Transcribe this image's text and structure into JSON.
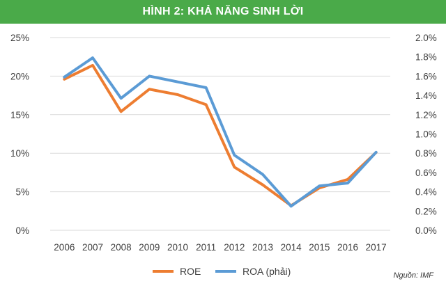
{
  "title": "HÌNH 2: KHẢ NĂNG SINH LỜI",
  "source": "Nguồn: IMF",
  "colors": {
    "title_bg": "#4aaa49",
    "roe": "#ed7d31",
    "roa": "#5b9bd5",
    "grid": "#d9d9d9"
  },
  "chart_data": {
    "type": "line",
    "categories": [
      "2006",
      "2007",
      "2008",
      "2009",
      "2010",
      "2011",
      "2012",
      "2013",
      "2014",
      "2015",
      "2016",
      "2017"
    ],
    "series": [
      {
        "name": "ROE",
        "axis": "left",
        "values": [
          19.6,
          21.4,
          15.4,
          18.3,
          17.6,
          16.3,
          8.2,
          5.9,
          3.2,
          5.5,
          6.6,
          10.1
        ]
      },
      {
        "name": "ROA (phải)",
        "axis": "right",
        "values": [
          1.59,
          1.79,
          1.37,
          1.6,
          1.54,
          1.48,
          0.78,
          0.58,
          0.25,
          0.46,
          0.49,
          0.81
        ]
      }
    ],
    "y_left": {
      "min": 0,
      "max": 25,
      "ticks": [
        "0%",
        "5%",
        "10%",
        "15%",
        "20%",
        "25%"
      ]
    },
    "y_right": {
      "min": 0,
      "max": 2.0,
      "ticks": [
        "0.0%",
        "0.2%",
        "0.4%",
        "0.6%",
        "0.8%",
        "1.0%",
        "1.2%",
        "1.4%",
        "1.6%",
        "1.8%",
        "2.0%"
      ]
    },
    "grid": true,
    "legend_position": "bottom"
  }
}
